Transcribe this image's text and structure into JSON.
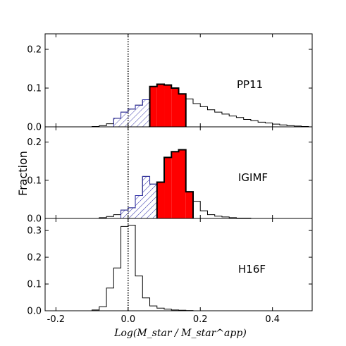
{
  "chart_data": {
    "type": "step-histogram",
    "ylabel": "Fraction",
    "xlabel": "Log(M_star / M_star^app)",
    "xlim": [
      -0.23,
      0.51
    ],
    "x_ticks": [
      "-0.2",
      "0.0",
      "0.2",
      "0.4"
    ],
    "x_tick_values": [
      -0.2,
      0.0,
      0.2,
      0.4
    ],
    "reference_line_x": 0.0,
    "bin_width": 0.02,
    "colors": {
      "red_fill": "#ff0000",
      "hatch": "#3333aa",
      "line": "#000000"
    },
    "panels": [
      {
        "name": "PP11",
        "ylim": [
          0,
          0.24
        ],
        "y_ticks": [
          "0.0",
          "0.1",
          "0.2"
        ],
        "y_tick_values": [
          0.0,
          0.1,
          0.2
        ],
        "bins_left": [
          -0.1,
          -0.08,
          -0.06,
          -0.04,
          -0.02,
          0.0,
          0.02,
          0.04,
          0.06,
          0.08,
          0.1,
          0.12,
          0.14,
          0.16,
          0.18,
          0.2,
          0.22,
          0.24,
          0.26,
          0.28,
          0.3,
          0.32,
          0.34,
          0.36,
          0.38,
          0.4,
          0.42,
          0.44,
          0.46,
          0.48
        ],
        "values": [
          0.001,
          0.003,
          0.008,
          0.022,
          0.038,
          0.046,
          0.056,
          0.07,
          0.104,
          0.11,
          0.108,
          0.1,
          0.085,
          0.072,
          0.06,
          0.052,
          0.044,
          0.038,
          0.033,
          0.028,
          0.024,
          0.019,
          0.016,
          0.012,
          0.01,
          0.007,
          0.005,
          0.003,
          0.002,
          0.001
        ],
        "hatched_range": [
          -0.04,
          0.06
        ],
        "red_range": [
          0.06,
          0.16
        ]
      },
      {
        "name": "IGIMF",
        "ylim": [
          0,
          0.24
        ],
        "y_ticks": [
          "0.0",
          "0.1",
          "0.2"
        ],
        "y_tick_values": [
          0.0,
          0.1,
          0.2
        ],
        "bins_left": [
          -0.1,
          -0.08,
          -0.06,
          -0.04,
          -0.02,
          0.0,
          0.02,
          0.04,
          0.06,
          0.08,
          0.1,
          0.12,
          0.14,
          0.16,
          0.18,
          0.2,
          0.22,
          0.24,
          0.26,
          0.28,
          0.3,
          0.32,
          0.34
        ],
        "values": [
          0.0,
          0.002,
          0.005,
          0.01,
          0.022,
          0.028,
          0.06,
          0.11,
          0.09,
          0.095,
          0.16,
          0.175,
          0.18,
          0.07,
          0.045,
          0.02,
          0.01,
          0.006,
          0.004,
          0.002,
          0.001,
          0.001,
          0.0
        ],
        "hatched_range": [
          -0.02,
          0.08
        ],
        "red_range": [
          0.08,
          0.18
        ]
      },
      {
        "name": "H16F",
        "ylim": [
          0,
          0.345
        ],
        "y_ticks": [
          "0.0",
          "0.1",
          "0.2",
          "0.3"
        ],
        "y_tick_values": [
          0.0,
          0.1,
          0.2,
          0.3
        ],
        "bins_left": [
          -0.1,
          -0.08,
          -0.06,
          -0.04,
          -0.02,
          0.0,
          0.02,
          0.04,
          0.06,
          0.08,
          0.1,
          0.12,
          0.14,
          0.16
        ],
        "values": [
          0.003,
          0.015,
          0.085,
          0.16,
          0.315,
          0.32,
          0.13,
          0.048,
          0.018,
          0.01,
          0.006,
          0.003,
          0.002,
          0.001
        ],
        "hatched_range": null,
        "red_range": null
      }
    ]
  }
}
